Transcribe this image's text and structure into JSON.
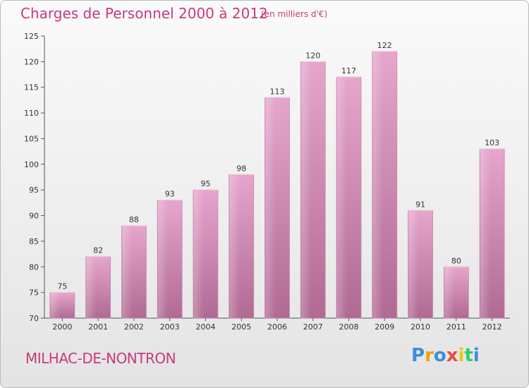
{
  "header": {
    "title": "Charges de Personnel 2000 à 2012",
    "subtitle": "(en milliers d'€)"
  },
  "footer": {
    "commune": "MILHAC-DE-NONTRON",
    "logo_letters": [
      "P",
      "r",
      "o",
      "x",
      "i",
      "t",
      "i"
    ],
    "logo_colors": [
      "#3a8fd8",
      "#f39c12",
      "#3a8fd8",
      "#e74c3c",
      "#f1c40f",
      "#2ecc71",
      "#3a8fd8"
    ]
  },
  "chart_data": {
    "type": "bar",
    "categories": [
      "2000",
      "2001",
      "2002",
      "2003",
      "2004",
      "2005",
      "2006",
      "2007",
      "2008",
      "2009",
      "2010",
      "2011",
      "2012"
    ],
    "values": [
      75,
      82,
      88,
      93,
      95,
      98,
      113,
      120,
      117,
      122,
      91,
      80,
      103
    ],
    "yticks": [
      70,
      75,
      80,
      85,
      90,
      95,
      100,
      105,
      110,
      115,
      120,
      125
    ],
    "ylim": [
      70,
      125
    ],
    "bar_color": "#d88fb8",
    "grid": false
  }
}
